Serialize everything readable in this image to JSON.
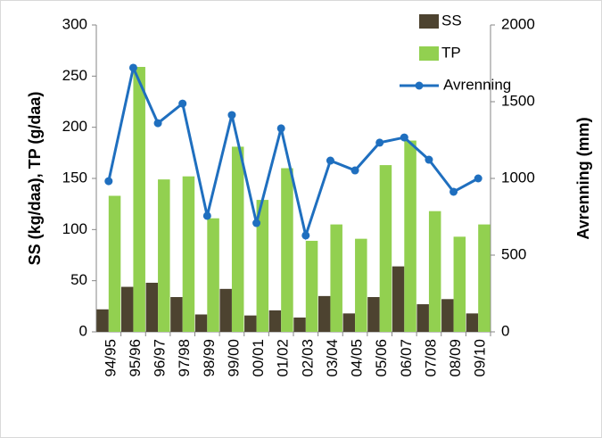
{
  "chart_data": {
    "type": "bar-line",
    "categories": [
      "94/95",
      "95/96",
      "96/97",
      "97/98",
      "98/99",
      "99/00",
      "00/01",
      "01/02",
      "02/03",
      "03/04",
      "04/05",
      "05/06",
      "06/07",
      "07/08",
      "08/09",
      "09/10"
    ],
    "y_label": "SS (kg/daa), TP (g/daa)",
    "y2_label": "Avrenning (mm)",
    "ylim": [
      0,
      300
    ],
    "yticks": [
      0,
      50,
      100,
      150,
      200,
      250,
      300
    ],
    "y2lim": [
      0,
      2000
    ],
    "y2ticks": [
      0,
      500,
      1000,
      1500,
      2000
    ],
    "legend": "top-right",
    "series": [
      {
        "name": "SS",
        "type": "bar",
        "color": "#4d4330",
        "values": [
          22,
          44,
          48,
          34,
          17,
          42,
          16,
          21,
          14,
          35,
          18,
          34,
          64,
          27,
          32,
          18
        ]
      },
      {
        "name": "TP",
        "type": "bar",
        "color": "#92d050",
        "values": [
          133,
          259,
          149,
          152,
          111,
          181,
          129,
          160,
          89,
          105,
          91,
          163,
          187,
          118,
          93,
          105
        ]
      },
      {
        "name": "Avrenning",
        "type": "line",
        "axis": "y2",
        "color": "#1f6fbf",
        "values": [
          982,
          1721,
          1360,
          1488,
          756,
          1413,
          709,
          1326,
          628,
          1116,
          1052,
          1233,
          1267,
          1122,
          913,
          1000
        ]
      }
    ]
  }
}
